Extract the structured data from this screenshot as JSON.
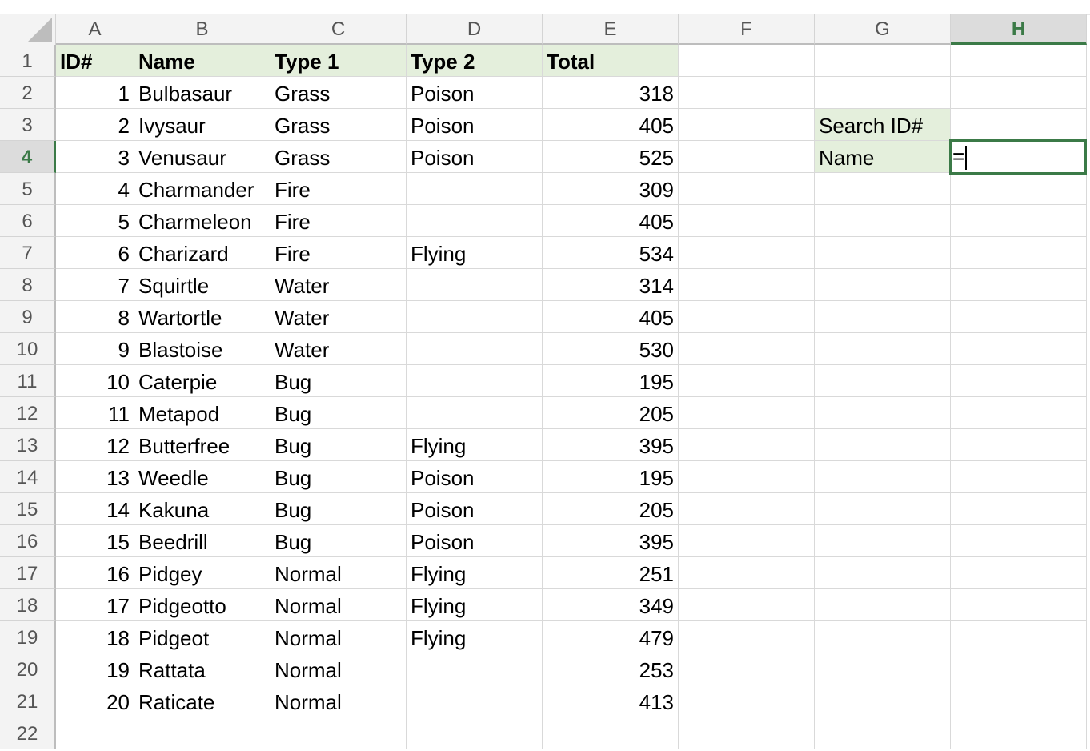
{
  "columns": [
    "A",
    "B",
    "C",
    "D",
    "E",
    "F",
    "G",
    "H"
  ],
  "selected_column": "H",
  "selected_row": 4,
  "rows_visible": 22,
  "header": [
    "ID#",
    "Name",
    "Type 1",
    "Type 2",
    "Total"
  ],
  "records": [
    [
      1,
      "Bulbasaur",
      "Grass",
      "Poison",
      318
    ],
    [
      2,
      "Ivysaur",
      "Grass",
      "Poison",
      405
    ],
    [
      3,
      "Venusaur",
      "Grass",
      "Poison",
      525
    ],
    [
      4,
      "Charmander",
      "Fire",
      "",
      309
    ],
    [
      5,
      "Charmeleon",
      "Fire",
      "",
      405
    ],
    [
      6,
      "Charizard",
      "Fire",
      "Flying",
      534
    ],
    [
      7,
      "Squirtle",
      "Water",
      "",
      314
    ],
    [
      8,
      "Wartortle",
      "Water",
      "",
      405
    ],
    [
      9,
      "Blastoise",
      "Water",
      "",
      530
    ],
    [
      10,
      "Caterpie",
      "Bug",
      "",
      195
    ],
    [
      11,
      "Metapod",
      "Bug",
      "",
      205
    ],
    [
      12,
      "Butterfree",
      "Bug",
      "Flying",
      395
    ],
    [
      13,
      "Weedle",
      "Bug",
      "Poison",
      195
    ],
    [
      14,
      "Kakuna",
      "Bug",
      "Poison",
      205
    ],
    [
      15,
      "Beedrill",
      "Bug",
      "Poison",
      395
    ],
    [
      16,
      "Pidgey",
      "Normal",
      "Flying",
      251
    ],
    [
      17,
      "Pidgeotto",
      "Normal",
      "Flying",
      349
    ],
    [
      18,
      "Pidgeot",
      "Normal",
      "Flying",
      479
    ],
    [
      19,
      "Rattata",
      "Normal",
      "",
      253
    ],
    [
      20,
      "Raticate",
      "Normal",
      "",
      413
    ]
  ],
  "search": {
    "label_id": "Search ID#",
    "label_name": "Name",
    "active_cell_value": "="
  },
  "colors": {
    "header_fill": "#e4efdc",
    "selection": "#3b7a47"
  }
}
